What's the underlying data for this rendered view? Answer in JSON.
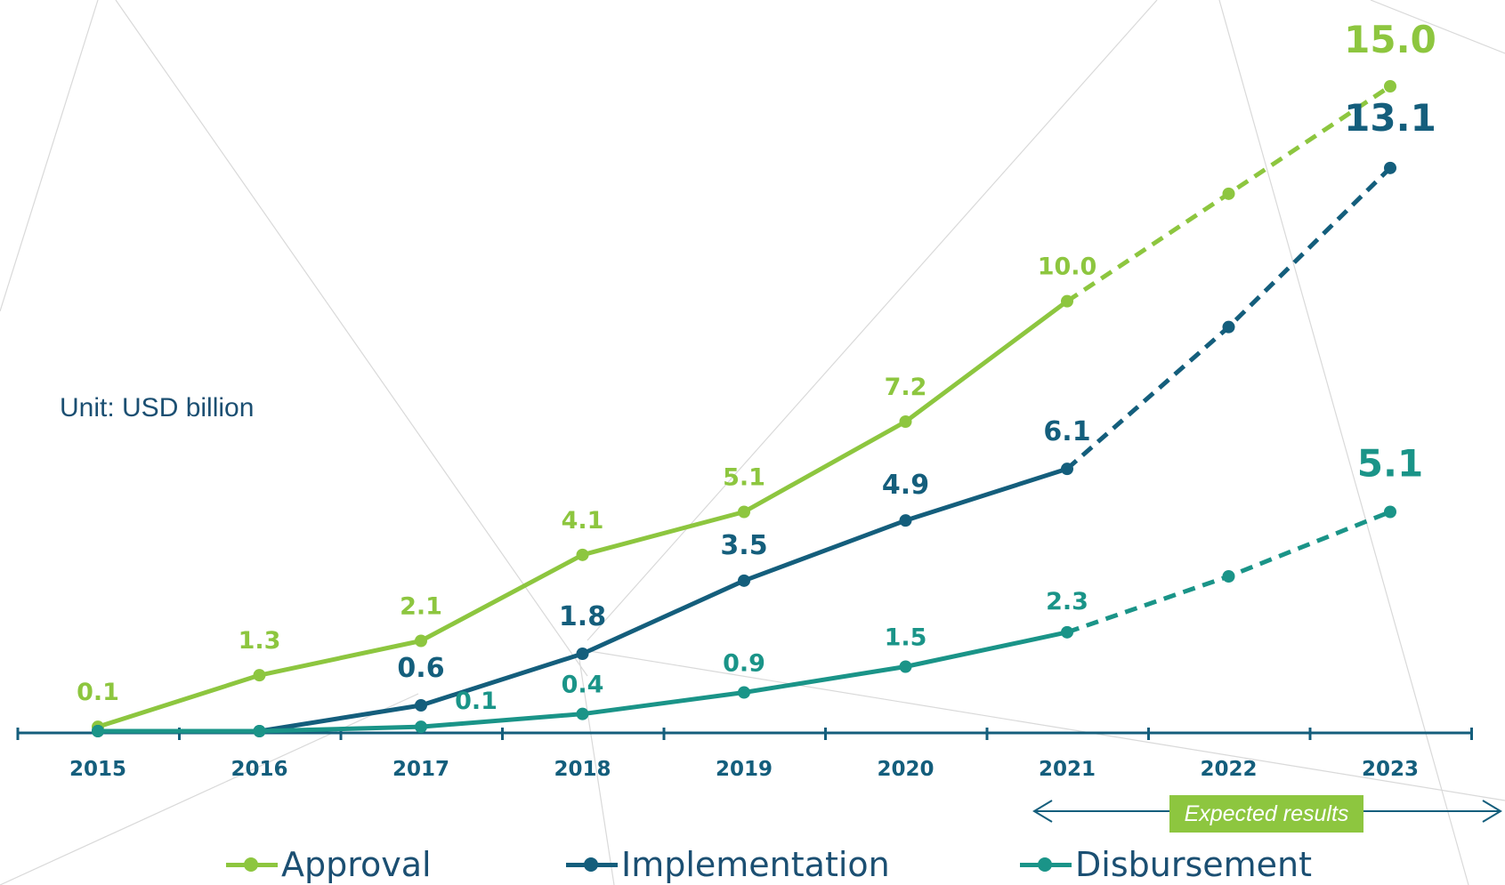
{
  "chart_data": {
    "type": "line",
    "unit_label": "Unit: USD billion",
    "categories": [
      "2015",
      "2016",
      "2017",
      "2018",
      "2019",
      "2020",
      "2021",
      "2022",
      "2023"
    ],
    "ylim": [
      0,
      16
    ],
    "expected_label": "Expected results",
    "expected_from": "2021",
    "series": [
      {
        "name": "Approval",
        "color": "#8dc63f",
        "values": [
          0.1,
          1.3,
          2.1,
          4.1,
          5.1,
          7.2,
          10.0,
          12.5,
          15.0
        ],
        "labels": [
          "0.1",
          "1.3",
          "2.1",
          "4.1",
          "5.1",
          "7.2",
          "10.0",
          null,
          "15.0"
        ]
      },
      {
        "name": "Implementation",
        "color": "#145e7c",
        "values": [
          0.0,
          0.0,
          0.6,
          1.8,
          3.5,
          4.9,
          6.1,
          9.4,
          13.1
        ],
        "labels": [
          null,
          null,
          "0.6",
          "1.8",
          "3.5",
          "4.9",
          "6.1",
          null,
          "13.1"
        ]
      },
      {
        "name": "Disbursement",
        "color": "#1a9488",
        "values": [
          0.0,
          0.0,
          0.1,
          0.4,
          0.9,
          1.5,
          2.3,
          3.6,
          5.1
        ],
        "labels": [
          null,
          null,
          "0.1",
          "0.4",
          "0.9",
          "1.5",
          "2.3",
          null,
          "5.1"
        ]
      }
    ]
  }
}
